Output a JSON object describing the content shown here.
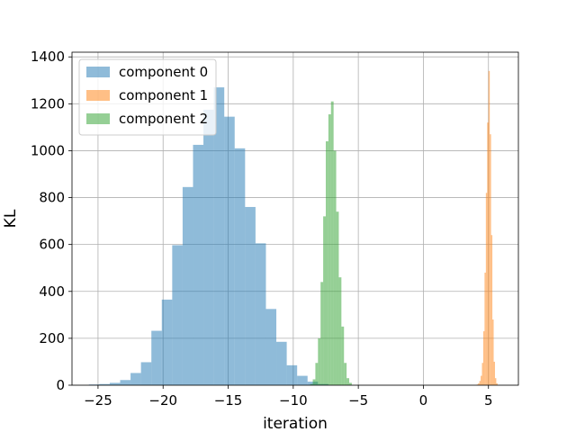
{
  "chart_data": {
    "type": "histogram",
    "xlabel": "iteration",
    "ylabel": "KL",
    "xlim": [
      -27,
      7.3
    ],
    "ylim": [
      0,
      1420
    ],
    "xticks": [
      -25,
      -20,
      -15,
      -10,
      -5,
      0,
      5
    ],
    "xtick_labels": [
      "−25",
      "−20",
      "−15",
      "−10",
      "−5",
      "0",
      "5"
    ],
    "yticks": [
      0,
      200,
      400,
      600,
      800,
      1000,
      1200,
      1400
    ],
    "ytick_labels": [
      "0",
      "200",
      "400",
      "600",
      "800",
      "1000",
      "1200",
      "1400"
    ],
    "grid": true,
    "legend_position": "top-left",
    "series": [
      {
        "name": "component 0",
        "color": "#1f77b4",
        "bin_width": 0.8,
        "bins": [
          [
            -25.7,
            3
          ],
          [
            -24.9,
            5
          ],
          [
            -24.1,
            10
          ],
          [
            -23.3,
            22
          ],
          [
            -22.5,
            52
          ],
          [
            -21.7,
            98
          ],
          [
            -20.9,
            232
          ],
          [
            -20.1,
            365
          ],
          [
            -19.3,
            597
          ],
          [
            -18.5,
            845
          ],
          [
            -17.7,
            1025
          ],
          [
            -16.9,
            1175
          ],
          [
            -16.1,
            1270
          ],
          [
            -15.3,
            1145
          ],
          [
            -14.5,
            1010
          ],
          [
            -13.7,
            760
          ],
          [
            -12.9,
            605
          ],
          [
            -12.1,
            325
          ],
          [
            -11.3,
            185
          ],
          [
            -10.5,
            85
          ],
          [
            -9.7,
            40
          ],
          [
            -8.9,
            15
          ],
          [
            -8.1,
            5
          ]
        ]
      },
      {
        "name": "component 1",
        "color": "#ff7f0e",
        "bin_width": 0.1,
        "bins": [
          [
            4.1,
            3
          ],
          [
            4.2,
            8
          ],
          [
            4.3,
            18
          ],
          [
            4.4,
            40
          ],
          [
            4.5,
            95
          ],
          [
            4.6,
            230
          ],
          [
            4.7,
            480
          ],
          [
            4.8,
            820
          ],
          [
            4.9,
            1120
          ],
          [
            5.0,
            1340
          ],
          [
            5.1,
            1070
          ],
          [
            5.2,
            640
          ],
          [
            5.3,
            280
          ],
          [
            5.4,
            100
          ],
          [
            5.5,
            30
          ],
          [
            5.6,
            8
          ]
        ]
      },
      {
        "name": "component 2",
        "color": "#2ca02c",
        "bin_width": 0.2,
        "bins": [
          [
            -8.7,
            5
          ],
          [
            -8.5,
            25
          ],
          [
            -8.3,
            95
          ],
          [
            -8.1,
            200
          ],
          [
            -7.9,
            440
          ],
          [
            -7.7,
            720
          ],
          [
            -7.5,
            1040
          ],
          [
            -7.3,
            1155
          ],
          [
            -7.1,
            1210
          ],
          [
            -6.9,
            1000
          ],
          [
            -6.7,
            740
          ],
          [
            -6.5,
            460
          ],
          [
            -6.3,
            250
          ],
          [
            -6.1,
            95
          ],
          [
            -5.9,
            30
          ],
          [
            -5.7,
            10
          ]
        ]
      }
    ]
  }
}
